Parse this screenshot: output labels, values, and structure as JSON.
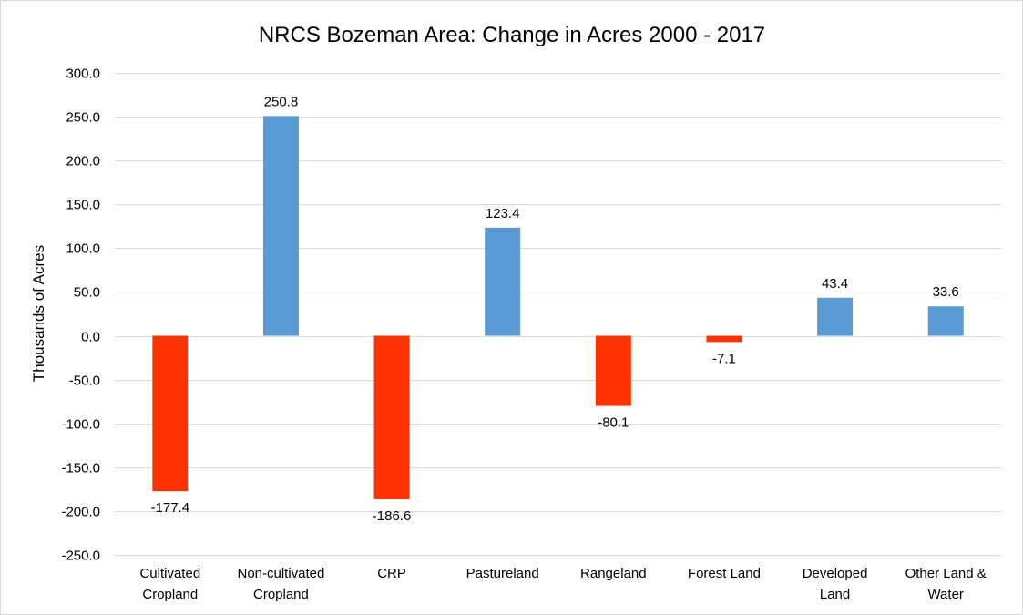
{
  "chart_data": {
    "type": "bar",
    "title": "NRCS Bozeman Area: Change in Acres 2000 - 2017",
    "xlabel": "",
    "ylabel": "Thousands of Acres",
    "ylim": [
      -250,
      300
    ],
    "yticks": [
      300,
      250,
      200,
      150,
      100,
      50,
      0,
      -50,
      -100,
      -150,
      -200,
      -250
    ],
    "tick_format_decimals": 1,
    "grid": true,
    "legend": "none",
    "categories": [
      [
        "Cultivated",
        "Cropland"
      ],
      [
        "Non-cultivated",
        "Cropland"
      ],
      [
        "CRP"
      ],
      [
        "Pastureland"
      ],
      [
        "Rangeland"
      ],
      [
        "Forest Land"
      ],
      [
        "Developed",
        "Land"
      ],
      [
        "Other Land &",
        "Water"
      ]
    ],
    "values": [
      -177.4,
      250.8,
      -186.6,
      123.4,
      -80.1,
      -7.1,
      43.4,
      33.6
    ],
    "data_labels": [
      "-177.4",
      "250.8",
      "-186.6",
      "123.4",
      "-80.1",
      "-7.1",
      "43.4",
      "33.6"
    ],
    "colors": {
      "positive": "#5b9bd5",
      "negative": "#ff3300",
      "grid": "#d9d9d9",
      "text": "#000000"
    }
  }
}
